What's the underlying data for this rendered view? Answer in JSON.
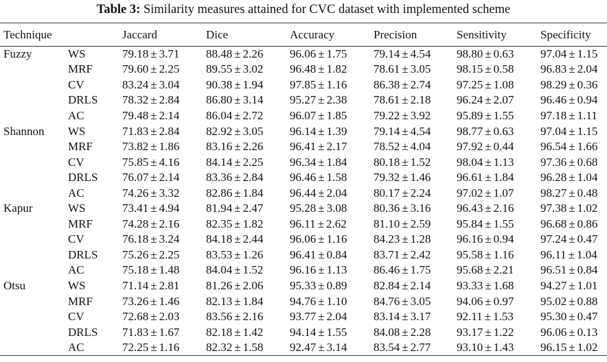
{
  "caption": {
    "label": "Table 3:",
    "text": "Similarity measures attained for CVC dataset with implemented scheme"
  },
  "table": {
    "headers": [
      "Technique",
      "Jaccard",
      "Dice",
      "Accuracy",
      "Precision",
      "Sensitivity",
      "Specificity"
    ],
    "groups": [
      {
        "technique": "Fuzzy",
        "rows": [
          {
            "method": "WS",
            "values": [
              [
                "79.18",
                "3.71"
              ],
              [
                "88.48",
                "2.26"
              ],
              [
                "96.06",
                "1.75"
              ],
              [
                "79.14",
                "4.54"
              ],
              [
                "98.80",
                "0.63"
              ],
              [
                "97.04",
                "1.15"
              ]
            ]
          },
          {
            "method": "MRF",
            "values": [
              [
                "79.60",
                "2.25"
              ],
              [
                "89.55",
                "3.02"
              ],
              [
                "96.48",
                "1.82"
              ],
              [
                "78.61",
                "3.05"
              ],
              [
                "98.15",
                "0.58"
              ],
              [
                "96.83",
                "2.04"
              ]
            ]
          },
          {
            "method": "CV",
            "values": [
              [
                "83.24",
                "3.04"
              ],
              [
                "90.38",
                "1.94"
              ],
              [
                "97.85",
                "1.16"
              ],
              [
                "86.38",
                "2.74"
              ],
              [
                "97.25",
                "1.08"
              ],
              [
                "98.29",
                "0.36"
              ]
            ]
          },
          {
            "method": "DRLS",
            "values": [
              [
                "78.32",
                "2.84"
              ],
              [
                "86.80",
                "3.14"
              ],
              [
                "95.27",
                "2.38"
              ],
              [
                "78.61",
                "2.18"
              ],
              [
                "96.24",
                "2.07"
              ],
              [
                "96.46",
                "0.94"
              ]
            ]
          },
          {
            "method": "AC",
            "values": [
              [
                "79.48",
                "2.14"
              ],
              [
                "86.04",
                "2.72"
              ],
              [
                "96.07",
                "1.85"
              ],
              [
                "79.22",
                "3.92"
              ],
              [
                "95.89",
                "1.55"
              ],
              [
                "97.18",
                "1.11"
              ]
            ]
          }
        ]
      },
      {
        "technique": "Shannon",
        "rows": [
          {
            "method": "WS",
            "values": [
              [
                "71.83",
                "2.84"
              ],
              [
                "82.92",
                "3.05"
              ],
              [
                "96.14",
                "1.39"
              ],
              [
                "79.14",
                "4.54"
              ],
              [
                "98.77",
                "0.63"
              ],
              [
                "97.04",
                "1.15"
              ]
            ]
          },
          {
            "method": "MRF",
            "values": [
              [
                "73.82",
                "1.86"
              ],
              [
                "83.16",
                "2.26"
              ],
              [
                "96.41",
                "2.17"
              ],
              [
                "78.52",
                "4.04"
              ],
              [
                "97.92",
                "0.44"
              ],
              [
                "96.54",
                "1.66"
              ]
            ]
          },
          {
            "method": "CV",
            "values": [
              [
                "75.85",
                "4.16"
              ],
              [
                "84.14",
                "2.25"
              ],
              [
                "96.34",
                "1.84"
              ],
              [
                "80.18",
                "1.52"
              ],
              [
                "98.04",
                "1.13"
              ],
              [
                "97.36",
                "0.68"
              ]
            ]
          },
          {
            "method": "DRLS",
            "values": [
              [
                "76.07",
                "2.14"
              ],
              [
                "83.36",
                "2.84"
              ],
              [
                "96.46",
                "1.58"
              ],
              [
                "79.32",
                "1.46"
              ],
              [
                "96.61",
                "1.84"
              ],
              [
                "96.28",
                "1.04"
              ]
            ]
          },
          {
            "method": "AC",
            "values": [
              [
                "74.26",
                "3.32"
              ],
              [
                "82.86",
                "1.84"
              ],
              [
                "96.44",
                "2.04"
              ],
              [
                "80.17",
                "2.24"
              ],
              [
                "97.02",
                "1.07"
              ],
              [
                "98.27",
                "0.48"
              ]
            ]
          }
        ]
      },
      {
        "technique": "Kapur",
        "rows": [
          {
            "method": "WS",
            "values": [
              [
                "73.41",
                "4.94"
              ],
              [
                "81.94",
                "2.47"
              ],
              [
                "95.28",
                "3.08"
              ],
              [
                "80.36",
                "3.16"
              ],
              [
                "96.43",
                "2.16"
              ],
              [
                "97.38",
                "1.02"
              ]
            ]
          },
          {
            "method": "MRF",
            "values": [
              [
                "74.28",
                "2.16"
              ],
              [
                "82.35",
                "1.82"
              ],
              [
                "96.11",
                "2.62"
              ],
              [
                "81.10",
                "2.59"
              ],
              [
                "95.84",
                "1.55"
              ],
              [
                "96.68",
                "0.86"
              ]
            ]
          },
          {
            "method": "CV",
            "values": [
              [
                "76.18",
                "3.24"
              ],
              [
                "84.18",
                "2.44"
              ],
              [
                "96.06",
                "1.16"
              ],
              [
                "84.23",
                "1.28"
              ],
              [
                "96.16",
                "0.94"
              ],
              [
                "97.24",
                "0.47"
              ]
            ]
          },
          {
            "method": "DRLS",
            "values": [
              [
                "75.26",
                "2.25"
              ],
              [
                "83.53",
                "1.26"
              ],
              [
                "96.41",
                "0.84"
              ],
              [
                "83.71",
                "2.42"
              ],
              [
                "95.58",
                "1.16"
              ],
              [
                "96.11",
                "1.04"
              ]
            ]
          },
          {
            "method": "AC",
            "values": [
              [
                "75.18",
                "1.48"
              ],
              [
                "84.04",
                "1.52"
              ],
              [
                "96.16",
                "1.13"
              ],
              [
                "86.46",
                "1.75"
              ],
              [
                "95.68",
                "2.21"
              ],
              [
                "96.51",
                "0.84"
              ]
            ]
          }
        ]
      },
      {
        "technique": "Otsu",
        "rows": [
          {
            "method": "WS",
            "values": [
              [
                "71.14",
                "2.81"
              ],
              [
                "81.26",
                "2.06"
              ],
              [
                "95.33",
                "0.89"
              ],
              [
                "82.84",
                "2.14"
              ],
              [
                "93.33",
                "1.68"
              ],
              [
                "94.27",
                "1.01"
              ]
            ]
          },
          {
            "method": "MRF",
            "values": [
              [
                "73.26",
                "1.46"
              ],
              [
                "82.13",
                "1.84"
              ],
              [
                "94.76",
                "1.10"
              ],
              [
                "84.76",
                "3.05"
              ],
              [
                "94.06",
                "0.97"
              ],
              [
                "95.02",
                "0.88"
              ]
            ]
          },
          {
            "method": "CV",
            "values": [
              [
                "72.68",
                "2.03"
              ],
              [
                "83.56",
                "2.16"
              ],
              [
                "93.77",
                "2.04"
              ],
              [
                "83.14",
                "3.17"
              ],
              [
                "92.11",
                "1.53"
              ],
              [
                "95.30",
                "0.47"
              ]
            ]
          },
          {
            "method": "DRLS",
            "values": [
              [
                "71.83",
                "1.67"
              ],
              [
                "82.18",
                "1.42"
              ],
              [
                "94.14",
                "1.55"
              ],
              [
                "84.08",
                "2.28"
              ],
              [
                "93.17",
                "1.22"
              ],
              [
                "96.06",
                "0.13"
              ]
            ]
          },
          {
            "method": "AC",
            "values": [
              [
                "72.25",
                "1.16"
              ],
              [
                "82.32",
                "1.58"
              ],
              [
                "92.47",
                "3.14"
              ],
              [
                "83.54",
                "2.77"
              ],
              [
                "93.10",
                "1.43"
              ],
              [
                "96.15",
                "1.02"
              ]
            ]
          }
        ]
      }
    ]
  }
}
